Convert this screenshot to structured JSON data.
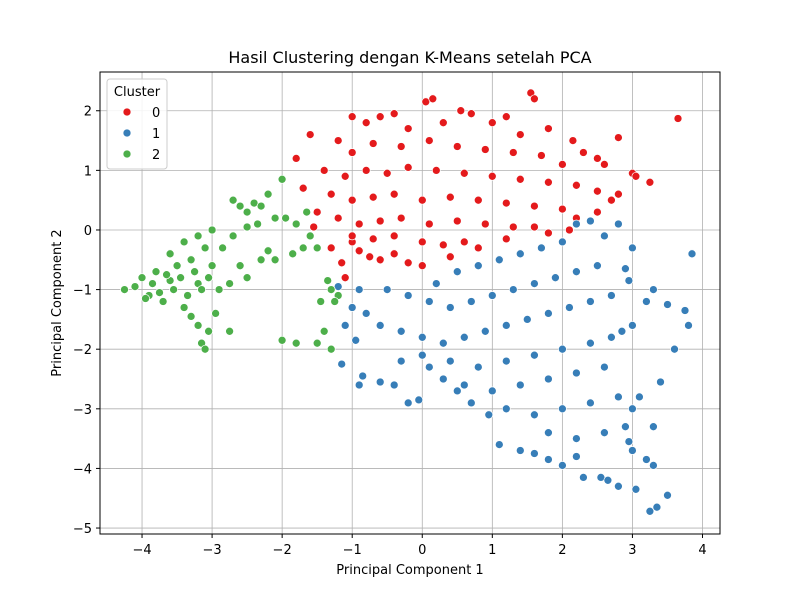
{
  "chart_data": {
    "type": "scatter",
    "title": "Hasil Clustering dengan K-Means setelah PCA",
    "xlabel": "Principal Component 1",
    "ylabel": "Principal Component 2",
    "xlim": [
      -4.6,
      4.25
    ],
    "ylim": [
      -5.1,
      2.65
    ],
    "xticks": [
      -4,
      -3,
      -2,
      -1,
      0,
      1,
      2,
      3,
      4
    ],
    "yticks": [
      -5,
      -4,
      -3,
      -2,
      -1,
      0,
      1,
      2
    ],
    "grid": true,
    "legend": {
      "title": "Cluster",
      "placement": "top-left"
    },
    "series": [
      {
        "name": "0",
        "color": "#e41a1c",
        "points": [
          [
            -1.8,
            1.2
          ],
          [
            -1.6,
            1.6
          ],
          [
            -1.7,
            0.7
          ],
          [
            -1.5,
            0.3
          ],
          [
            -1.55,
            0.05
          ],
          [
            -1.3,
            -0.3
          ],
          [
            -1.15,
            -0.55
          ],
          [
            -1.1,
            -0.8
          ],
          [
            -1.0,
            -0.2
          ],
          [
            -0.9,
            -0.35
          ],
          [
            -0.75,
            -0.45
          ],
          [
            -0.6,
            -0.5
          ],
          [
            -0.4,
            -0.4
          ],
          [
            0.0,
            -0.6
          ],
          [
            0.05,
            2.15
          ],
          [
            0.15,
            2.2
          ],
          [
            0.55,
            2.0
          ],
          [
            1.2,
            1.9
          ],
          [
            1.55,
            2.3
          ],
          [
            1.6,
            2.2
          ],
          [
            2.8,
            1.55
          ],
          [
            3.0,
            0.95
          ],
          [
            3.05,
            0.9
          ],
          [
            3.25,
            0.8
          ],
          [
            3.65,
            1.87
          ],
          [
            2.15,
            1.5
          ],
          [
            2.3,
            1.3
          ],
          [
            2.5,
            1.2
          ],
          [
            2.6,
            1.1
          ],
          [
            2.5,
            0.65
          ],
          [
            2.8,
            0.6
          ],
          [
            2.7,
            0.5
          ],
          [
            2.5,
            0.3
          ],
          [
            2.2,
            0.2
          ],
          [
            2.1,
            0.0
          ],
          [
            1.8,
            -0.05
          ],
          [
            1.6,
            0.05
          ],
          [
            1.2,
            -0.15
          ],
          [
            0.8,
            -0.3
          ],
          [
            0.4,
            -0.45
          ],
          [
            -0.2,
            -0.55
          ],
          [
            -1.0,
            1.9
          ],
          [
            -0.8,
            1.8
          ],
          [
            -0.6,
            1.9
          ],
          [
            -0.4,
            1.95
          ],
          [
            -0.2,
            1.7
          ],
          [
            0.3,
            1.8
          ],
          [
            0.7,
            1.95
          ],
          [
            1.0,
            1.8
          ],
          [
            1.4,
            1.6
          ],
          [
            1.8,
            1.7
          ],
          [
            -1.2,
            1.5
          ],
          [
            -1.0,
            1.3
          ],
          [
            -0.7,
            1.45
          ],
          [
            -0.3,
            1.4
          ],
          [
            0.1,
            1.5
          ],
          [
            0.5,
            1.4
          ],
          [
            0.9,
            1.35
          ],
          [
            1.3,
            1.3
          ],
          [
            1.7,
            1.25
          ],
          [
            2.0,
            1.1
          ],
          [
            -1.4,
            1.0
          ],
          [
            -1.1,
            0.9
          ],
          [
            -0.8,
            1.0
          ],
          [
            -0.5,
            0.95
          ],
          [
            -0.2,
            1.05
          ],
          [
            0.2,
            1.0
          ],
          [
            0.6,
            0.95
          ],
          [
            1.0,
            0.9
          ],
          [
            1.4,
            0.85
          ],
          [
            1.8,
            0.8
          ],
          [
            2.2,
            0.75
          ],
          [
            -1.3,
            0.6
          ],
          [
            -1.0,
            0.5
          ],
          [
            -0.7,
            0.55
          ],
          [
            -0.4,
            0.6
          ],
          [
            0.0,
            0.5
          ],
          [
            0.4,
            0.55
          ],
          [
            0.8,
            0.5
          ],
          [
            1.2,
            0.45
          ],
          [
            1.6,
            0.4
          ],
          [
            2.0,
            0.35
          ],
          [
            -1.2,
            0.2
          ],
          [
            -0.9,
            0.1
          ],
          [
            -0.6,
            0.15
          ],
          [
            -0.3,
            0.2
          ],
          [
            0.1,
            0.1
          ],
          [
            0.5,
            0.15
          ],
          [
            0.9,
            0.1
          ],
          [
            1.3,
            0.05
          ],
          [
            -1.0,
            -0.1
          ],
          [
            -0.7,
            -0.15
          ],
          [
            -0.4,
            -0.1
          ],
          [
            0.0,
            -0.2
          ],
          [
            0.3,
            -0.25
          ],
          [
            0.6,
            -0.2
          ]
        ]
      },
      {
        "name": "1",
        "color": "#377eb8",
        "points": [
          [
            -1.2,
            -0.95
          ],
          [
            -1.0,
            -1.3
          ],
          [
            -0.9,
            -1.0
          ],
          [
            -0.8,
            -1.4
          ],
          [
            -1.1,
            -1.6
          ],
          [
            -1.15,
            -2.25
          ],
          [
            -0.95,
            -1.85
          ],
          [
            -0.9,
            -2.6
          ],
          [
            -0.85,
            -2.45
          ],
          [
            -0.6,
            -2.55
          ],
          [
            -0.4,
            -2.6
          ],
          [
            -0.2,
            -2.9
          ],
          [
            -0.05,
            -2.85
          ],
          [
            0.1,
            -2.3
          ],
          [
            0.3,
            -2.5
          ],
          [
            0.5,
            -2.7
          ],
          [
            0.7,
            -2.9
          ],
          [
            0.95,
            -3.1
          ],
          [
            1.1,
            -3.6
          ],
          [
            1.4,
            -3.7
          ],
          [
            1.6,
            -3.75
          ],
          [
            1.8,
            -3.85
          ],
          [
            2.0,
            -3.95
          ],
          [
            2.2,
            -3.8
          ],
          [
            2.3,
            -4.15
          ],
          [
            2.55,
            -4.15
          ],
          [
            2.65,
            -4.2
          ],
          [
            2.8,
            -4.3
          ],
          [
            3.05,
            -4.35
          ],
          [
            3.25,
            -4.72
          ],
          [
            3.35,
            -4.65
          ],
          [
            3.5,
            -4.45
          ],
          [
            3.3,
            -3.95
          ],
          [
            3.2,
            -3.85
          ],
          [
            3.0,
            -3.7
          ],
          [
            2.95,
            -3.55
          ],
          [
            3.3,
            -3.3
          ],
          [
            3.0,
            -3.0
          ],
          [
            3.1,
            -2.8
          ],
          [
            3.4,
            -2.55
          ],
          [
            3.6,
            -2.0
          ],
          [
            3.8,
            -1.6
          ],
          [
            3.75,
            -1.35
          ],
          [
            3.5,
            -1.25
          ],
          [
            3.3,
            -1.0
          ],
          [
            3.2,
            -1.2
          ],
          [
            3.0,
            -1.6
          ],
          [
            2.85,
            -1.7
          ],
          [
            2.9,
            -0.65
          ],
          [
            2.95,
            -0.85
          ],
          [
            3.0,
            -0.3
          ],
          [
            3.85,
            -0.4
          ],
          [
            2.8,
            0.1
          ],
          [
            2.6,
            -0.1
          ],
          [
            2.4,
            0.15
          ],
          [
            2.2,
            0.1
          ],
          [
            0.2,
            -0.9
          ],
          [
            0.5,
            -0.7
          ],
          [
            0.8,
            -0.6
          ],
          [
            1.1,
            -0.5
          ],
          [
            1.4,
            -0.4
          ],
          [
            1.7,
            -0.3
          ],
          [
            2.0,
            -0.2
          ],
          [
            -0.5,
            -1.0
          ],
          [
            -0.2,
            -1.1
          ],
          [
            0.1,
            -1.2
          ],
          [
            0.4,
            -1.3
          ],
          [
            0.7,
            -1.2
          ],
          [
            1.0,
            -1.1
          ],
          [
            1.3,
            -1.0
          ],
          [
            1.6,
            -0.9
          ],
          [
            1.9,
            -0.8
          ],
          [
            2.2,
            -0.7
          ],
          [
            2.5,
            -0.6
          ],
          [
            -0.6,
            -1.6
          ],
          [
            -0.3,
            -1.7
          ],
          [
            0.0,
            -1.8
          ],
          [
            0.3,
            -1.9
          ],
          [
            0.6,
            -1.8
          ],
          [
            0.9,
            -1.7
          ],
          [
            1.2,
            -1.6
          ],
          [
            1.5,
            -1.5
          ],
          [
            1.8,
            -1.4
          ],
          [
            2.1,
            -1.3
          ],
          [
            2.4,
            -1.2
          ],
          [
            2.7,
            -1.1
          ],
          [
            -0.3,
            -2.2
          ],
          [
            0.0,
            -2.1
          ],
          [
            0.4,
            -2.2
          ],
          [
            0.8,
            -2.3
          ],
          [
            1.2,
            -2.2
          ],
          [
            1.6,
            -2.1
          ],
          [
            2.0,
            -2.0
          ],
          [
            2.4,
            -1.9
          ],
          [
            2.7,
            -1.8
          ],
          [
            0.6,
            -2.6
          ],
          [
            1.0,
            -2.7
          ],
          [
            1.4,
            -2.6
          ],
          [
            1.8,
            -2.5
          ],
          [
            2.2,
            -2.4
          ],
          [
            2.6,
            -2.3
          ],
          [
            1.2,
            -3.0
          ],
          [
            1.6,
            -3.1
          ],
          [
            2.0,
            -3.0
          ],
          [
            2.4,
            -2.9
          ],
          [
            2.8,
            -2.8
          ],
          [
            1.8,
            -3.4
          ],
          [
            2.2,
            -3.5
          ],
          [
            2.6,
            -3.4
          ],
          [
            2.9,
            -3.3
          ]
        ]
      },
      {
        "name": "2",
        "color": "#4daf4a",
        "points": [
          [
            -4.25,
            -1.0
          ],
          [
            -4.1,
            -0.95
          ],
          [
            -4.0,
            -0.8
          ],
          [
            -3.9,
            -1.1
          ],
          [
            -3.8,
            -0.7
          ],
          [
            -3.7,
            -1.2
          ],
          [
            -3.6,
            -0.85
          ],
          [
            -3.5,
            -0.6
          ],
          [
            -3.4,
            -1.3
          ],
          [
            -3.3,
            -0.5
          ],
          [
            -3.2,
            -0.9
          ],
          [
            -3.1,
            -0.3
          ],
          [
            -3.0,
            -0.6
          ],
          [
            -2.9,
            -1.0
          ],
          [
            -3.95,
            -1.15
          ],
          [
            -3.85,
            -0.9
          ],
          [
            -3.75,
            -1.05
          ],
          [
            -3.65,
            -0.75
          ],
          [
            -3.55,
            -1.0
          ],
          [
            -3.45,
            -0.8
          ],
          [
            -3.35,
            -1.1
          ],
          [
            -3.25,
            -0.7
          ],
          [
            -3.15,
            -1.0
          ],
          [
            -3.05,
            -0.8
          ],
          [
            -3.6,
            -0.4
          ],
          [
            -3.4,
            -0.2
          ],
          [
            -3.2,
            -0.1
          ],
          [
            -3.0,
            0.0
          ],
          [
            -2.85,
            -0.3
          ],
          [
            -2.7,
            -0.1
          ],
          [
            -2.6,
            -0.6
          ],
          [
            -2.5,
            -0.8
          ],
          [
            -2.75,
            -0.9
          ],
          [
            -3.3,
            -1.45
          ],
          [
            -3.2,
            -1.6
          ],
          [
            -3.15,
            -1.9
          ],
          [
            -3.1,
            -2.0
          ],
          [
            -3.05,
            -1.7
          ],
          [
            -2.95,
            -1.4
          ],
          [
            -2.75,
            -1.7
          ],
          [
            -2.7,
            0.5
          ],
          [
            -2.6,
            0.4
          ],
          [
            -2.5,
            0.3
          ],
          [
            -2.4,
            0.45
          ],
          [
            -2.3,
            0.4
          ],
          [
            -2.2,
            0.6
          ],
          [
            -2.1,
            0.2
          ],
          [
            -2.0,
            0.85
          ],
          [
            -1.95,
            0.2
          ],
          [
            -2.1,
            -0.5
          ],
          [
            -2.3,
            -0.5
          ],
          [
            -1.8,
            0.1
          ],
          [
            -1.85,
            -0.4
          ],
          [
            -1.7,
            -0.3
          ],
          [
            -1.6,
            -0.1
          ],
          [
            -1.65,
            0.3
          ],
          [
            -1.5,
            -0.3
          ],
          [
            -1.45,
            -1.2
          ],
          [
            -1.35,
            -0.85
          ],
          [
            -1.3,
            -1.0
          ],
          [
            -1.2,
            -1.1
          ],
          [
            -1.25,
            -1.2
          ],
          [
            -1.4,
            -1.7
          ],
          [
            -1.5,
            -1.9
          ],
          [
            -1.3,
            -2.0
          ],
          [
            -1.8,
            -1.9
          ],
          [
            -2.0,
            -1.85
          ],
          [
            -2.35,
            0.1
          ],
          [
            -2.5,
            0.05
          ],
          [
            -2.2,
            -0.35
          ]
        ]
      }
    ]
  }
}
